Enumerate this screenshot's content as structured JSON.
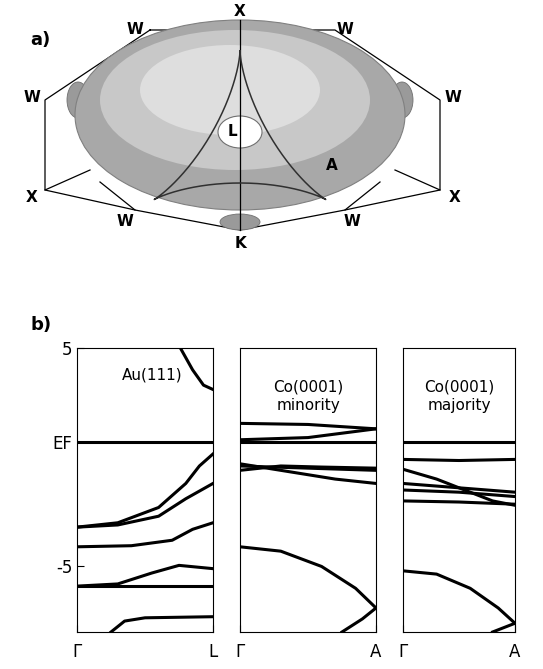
{
  "diagram": {
    "label": "a)",
    "points": [
      "X",
      "W",
      "W",
      "W",
      "W",
      "X",
      "W",
      "W",
      "X",
      "K",
      "L",
      "A"
    ]
  },
  "panel_b_label": "b)",
  "chart_data": [
    {
      "type": "line",
      "title": "Au(111)",
      "color": "#000000",
      "xlim": [
        0,
        1
      ],
      "xticks": [
        {
          "value": 0,
          "label": "Γ"
        },
        {
          "value": 1,
          "label": "L"
        }
      ],
      "ylim": [
        -8,
        5
      ],
      "yticks": [
        5,
        {
          "value": 0.7,
          "label": "EF"
        },
        -5
      ],
      "fermi_level": 0.7,
      "series": [
        {
          "x": [
            0.76,
            0.85,
            0.93,
            1.0
          ],
          "values": [
            5.0,
            4.0,
            3.3,
            3.1
          ]
        },
        {
          "x": [
            0,
            0.3,
            0.6,
            0.8,
            0.9,
            1.0
          ],
          "values": [
            -3.2,
            -3.0,
            -2.3,
            -1.2,
            -0.4,
            0.15
          ]
        },
        {
          "x": [
            0,
            0.3,
            0.6,
            0.8,
            1.0
          ],
          "values": [
            -3.2,
            -3.1,
            -2.7,
            -1.9,
            -1.2
          ]
        },
        {
          "x": [
            0,
            0.4,
            0.7,
            0.85,
            1.0
          ],
          "values": [
            -4.1,
            -4.05,
            -3.8,
            -3.3,
            -3.0
          ]
        },
        {
          "x": [
            0,
            0.3,
            0.55,
            0.75,
            1.0
          ],
          "values": [
            -5.9,
            -5.8,
            -5.3,
            -4.95,
            -5.1
          ]
        },
        {
          "x": [
            0,
            1.0
          ],
          "values": [
            -5.9,
            -5.9
          ]
        },
        {
          "x": [
            0.25,
            0.35,
            0.5,
            1.0
          ],
          "values": [
            -8.0,
            -7.5,
            -7.35,
            -7.3
          ]
        }
      ]
    },
    {
      "type": "line",
      "title": "Co(0001)\nminority",
      "color": "#000000",
      "xlim": [
        0,
        1
      ],
      "xticks": [
        {
          "value": 0,
          "label": "Γ"
        },
        {
          "value": 1,
          "label": "A"
        }
      ],
      "ylim": [
        -8,
        5
      ],
      "tick_labels": "x",
      "fermi_level": 0.7,
      "series": [
        {
          "x": [
            0,
            0.5,
            1.0
          ],
          "values": [
            1.55,
            1.5,
            1.3
          ]
        },
        {
          "x": [
            0,
            0.5,
            1.0
          ],
          "values": [
            0.8,
            0.9,
            1.3
          ]
        },
        {
          "x": [
            0,
            0.5,
            1.0
          ],
          "values": [
            -0.4,
            -0.5,
            -0.6
          ]
        },
        {
          "x": [
            0,
            0.3,
            0.7,
            1.0
          ],
          "values": [
            -0.3,
            -0.6,
            -1.0,
            -1.2
          ]
        },
        {
          "x": [
            0,
            0.3,
            0.6,
            1.0
          ],
          "values": [
            -0.6,
            -0.4,
            -0.45,
            -0.5
          ]
        },
        {
          "x": [
            0,
            0.3,
            0.6,
            0.85,
            1.0
          ],
          "values": [
            -4.1,
            -4.3,
            -5.0,
            -6.0,
            -6.9
          ]
        },
        {
          "x": [
            0.75,
            0.9,
            1.0
          ],
          "values": [
            -8.0,
            -7.4,
            -6.9
          ]
        }
      ]
    },
    {
      "type": "line",
      "title": "Co(0001)\nmajority",
      "color": "#000000",
      "xlim": [
        0,
        1
      ],
      "xticks": [
        {
          "value": 0,
          "label": "Γ"
        },
        {
          "value": 1,
          "label": "A"
        }
      ],
      "ylim": [
        -8,
        5
      ],
      "tick_labels": "x",
      "fermi_level": 0.7,
      "series": [
        {
          "x": [
            0,
            0.5,
            1.0
          ],
          "values": [
            -0.1,
            -0.15,
            -0.1
          ]
        },
        {
          "x": [
            0,
            0.3,
            0.6,
            0.8,
            1.0
          ],
          "values": [
            -0.55,
            -1.0,
            -1.6,
            -2.0,
            -2.2
          ]
        },
        {
          "x": [
            0,
            0.5,
            1.0
          ],
          "values": [
            -1.2,
            -1.4,
            -1.6
          ]
        },
        {
          "x": [
            0,
            0.5,
            1.0
          ],
          "values": [
            -1.5,
            -1.6,
            -1.8
          ]
        },
        {
          "x": [
            0,
            0.5,
            1.0
          ],
          "values": [
            -2.0,
            -2.05,
            -2.15
          ]
        },
        {
          "x": [
            0,
            0.3,
            0.6,
            0.85,
            1.0
          ],
          "values": [
            -5.2,
            -5.35,
            -6.0,
            -6.9,
            -7.6
          ]
        },
        {
          "x": [
            0.8,
            0.9,
            1.0
          ],
          "values": [
            -8.0,
            -7.8,
            -7.6
          ]
        }
      ]
    }
  ]
}
